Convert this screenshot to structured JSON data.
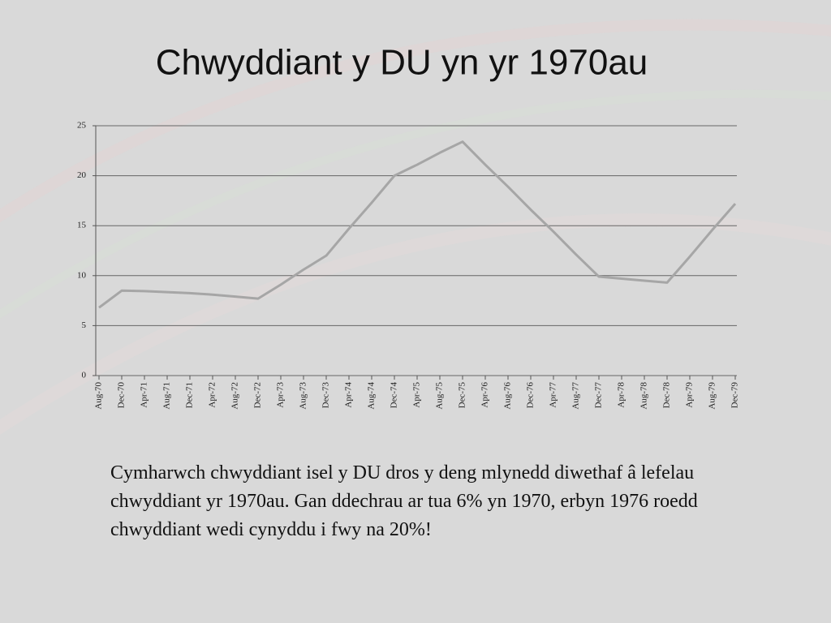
{
  "chart_data": {
    "type": "line",
    "title": "Chwyddiant y DU yn yr 1970au",
    "categories": [
      "Aug-70",
      "Dec-70",
      "Apr-71",
      "Aug-71",
      "Dec-71",
      "Apr-72",
      "Aug-72",
      "Dec-72",
      "Apr-73",
      "Aug-73",
      "Dec-73",
      "Apr-74",
      "Aug-74",
      "Dec-74",
      "Apr-75",
      "Aug-75",
      "Dec-75",
      "Apr-76",
      "Aug-76",
      "Dec-76",
      "Apr-77",
      "Aug-77",
      "Dec-77",
      "Apr-78",
      "Aug-78",
      "Dec-78",
      "Apr-79",
      "Aug-79",
      "Dec-79"
    ],
    "series": [
      {
        "name": "Chwyddiant",
        "color": "#a6a6a6",
        "values": [
          6.8,
          8.5,
          8.45,
          8.35,
          8.25,
          8.1,
          7.9,
          7.7,
          9.1,
          10.6,
          12.0,
          14.7,
          17.3,
          20.0,
          21.1,
          22.3,
          23.4,
          21.1,
          18.9,
          16.6,
          14.4,
          12.1,
          9.9,
          9.7,
          9.5,
          9.3,
          11.9,
          14.6,
          17.2
        ]
      }
    ],
    "ylim": [
      0,
      25
    ],
    "yticks": [
      0,
      5,
      10,
      15,
      20,
      25
    ],
    "grid": true
  },
  "body_text": "Cymharwch chwyddiant isel y DU dros y deng mlynedd diwethaf â lefelau chwyddiant yr 1970au. Gan ddechrau ar tua 6% yn 1970, erbyn 1976 roedd chwyddiant wedi cynyddu i fwy na 20%!"
}
